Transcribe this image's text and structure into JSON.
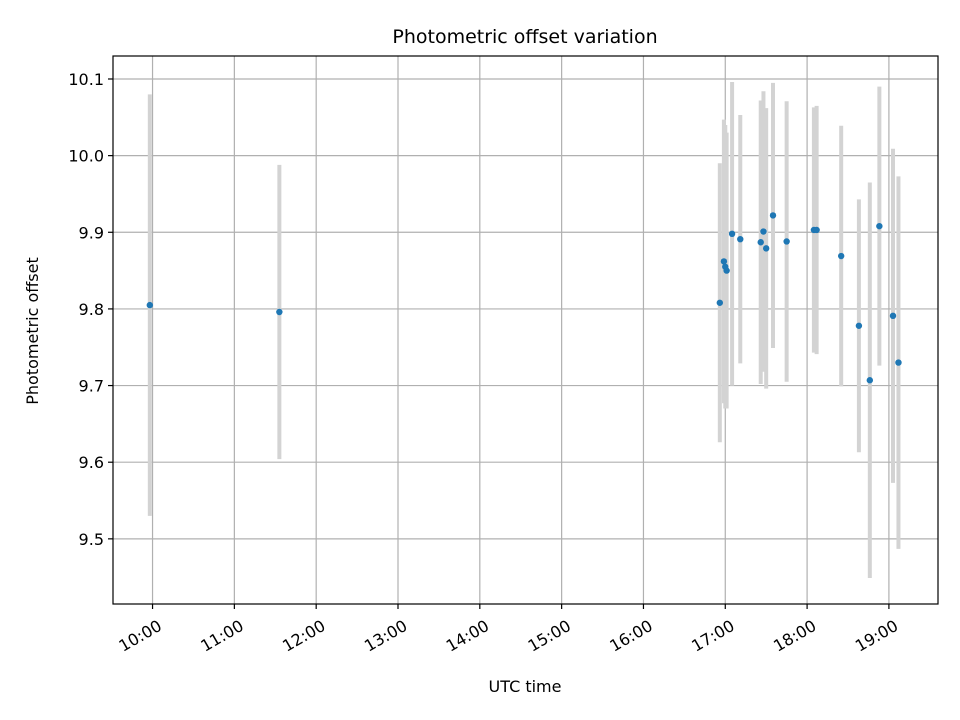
{
  "chart_data": {
    "type": "scatter",
    "title": "Photometric offset variation",
    "xlabel": "UTC time",
    "ylabel": "Photometric offset",
    "x_ticks": [
      "10:00",
      "11:00",
      "12:00",
      "13:00",
      "14:00",
      "15:00",
      "16:00",
      "17:00",
      "18:00",
      "19:00"
    ],
    "y_ticks": [
      9.5,
      9.6,
      9.7,
      9.8,
      9.9,
      10.0,
      10.1
    ],
    "xlim": [
      "09:31",
      "19:36"
    ],
    "ylim": [
      9.415,
      10.13
    ],
    "grid": true,
    "colors": {
      "point": "#1f77b4",
      "errorbar": "#d3d3d3",
      "grid": "#b0b0b0"
    },
    "points": [
      {
        "x": "09:58",
        "y": 9.805,
        "err": 0.275
      },
      {
        "x": "11:33",
        "y": 9.796,
        "err": 0.192
      },
      {
        "x": "16:56",
        "y": 9.808,
        "err": 0.182
      },
      {
        "x": "16:59",
        "y": 9.862,
        "err": 0.185
      },
      {
        "x": "17:00",
        "y": 9.855,
        "err": 0.185
      },
      {
        "x": "17:01",
        "y": 9.85,
        "err": 0.18
      },
      {
        "x": "17:05",
        "y": 9.898,
        "err": 0.198
      },
      {
        "x": "17:11",
        "y": 9.891,
        "err": 0.162
      },
      {
        "x": "17:26",
        "y": 9.887,
        "err": 0.185
      },
      {
        "x": "17:28",
        "y": 9.901,
        "err": 0.183
      },
      {
        "x": "17:30",
        "y": 9.879,
        "err": 0.183
      },
      {
        "x": "17:35",
        "y": 9.922,
        "err": 0.173
      },
      {
        "x": "17:45",
        "y": 9.888,
        "err": 0.183
      },
      {
        "x": "18:05",
        "y": 9.903,
        "err": 0.16
      },
      {
        "x": "18:07",
        "y": 9.903,
        "err": 0.162
      },
      {
        "x": "18:25",
        "y": 9.869,
        "err": 0.17
      },
      {
        "x": "18:38",
        "y": 9.778,
        "err": 0.165
      },
      {
        "x": "18:46",
        "y": 9.707,
        "err": 0.258
      },
      {
        "x": "18:53",
        "y": 9.908,
        "err": 0.182
      },
      {
        "x": "19:03",
        "y": 9.791,
        "err": 0.218
      },
      {
        "x": "19:07",
        "y": 9.73,
        "err": 0.243
      }
    ]
  }
}
